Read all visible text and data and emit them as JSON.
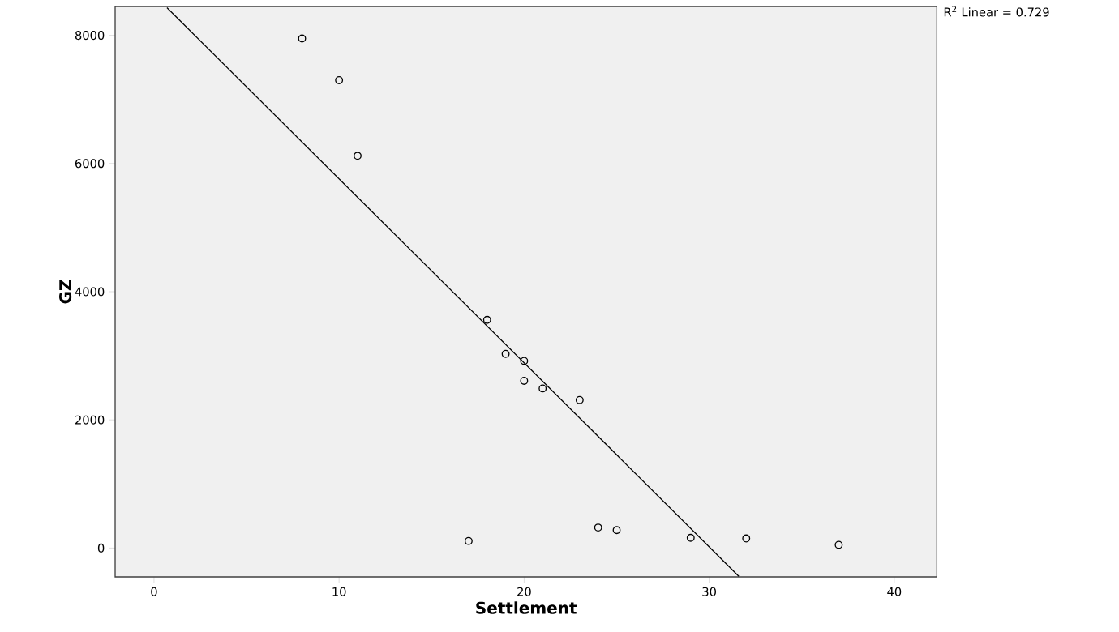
{
  "chart_data": {
    "type": "scatter",
    "xlabel": "Settlement",
    "ylabel": "GZ",
    "annotations": [
      "R$^{2}$ Linear = 0.729"
    ],
    "series": [
      {
        "color": "#000000",
        "marker": "circle",
        "x": [
          8,
          10,
          11,
          18,
          19,
          20,
          20,
          21,
          23,
          17,
          24,
          25,
          29,
          32,
          37
        ],
        "values": [
          7950,
          7300,
          6120,
          3560,
          3030,
          2920,
          2610,
          2490,
          2310,
          110,
          320,
          280,
          160,
          150,
          50
        ]
      },
      {
        "type": "line",
        "color": "#000000",
        "marker": "none",
        "x": [
          0.7,
          31.6
        ],
        "values": [
          8430,
          -440
        ]
      }
    ],
    "xlim": [
      -2.1,
      42.3
    ],
    "ylim": [
      -450,
      8450
    ],
    "xticks": [
      0,
      10,
      20,
      30,
      40
    ],
    "yticks": [
      0,
      2000,
      4000,
      6000,
      8000
    ],
    "grid": false
  }
}
